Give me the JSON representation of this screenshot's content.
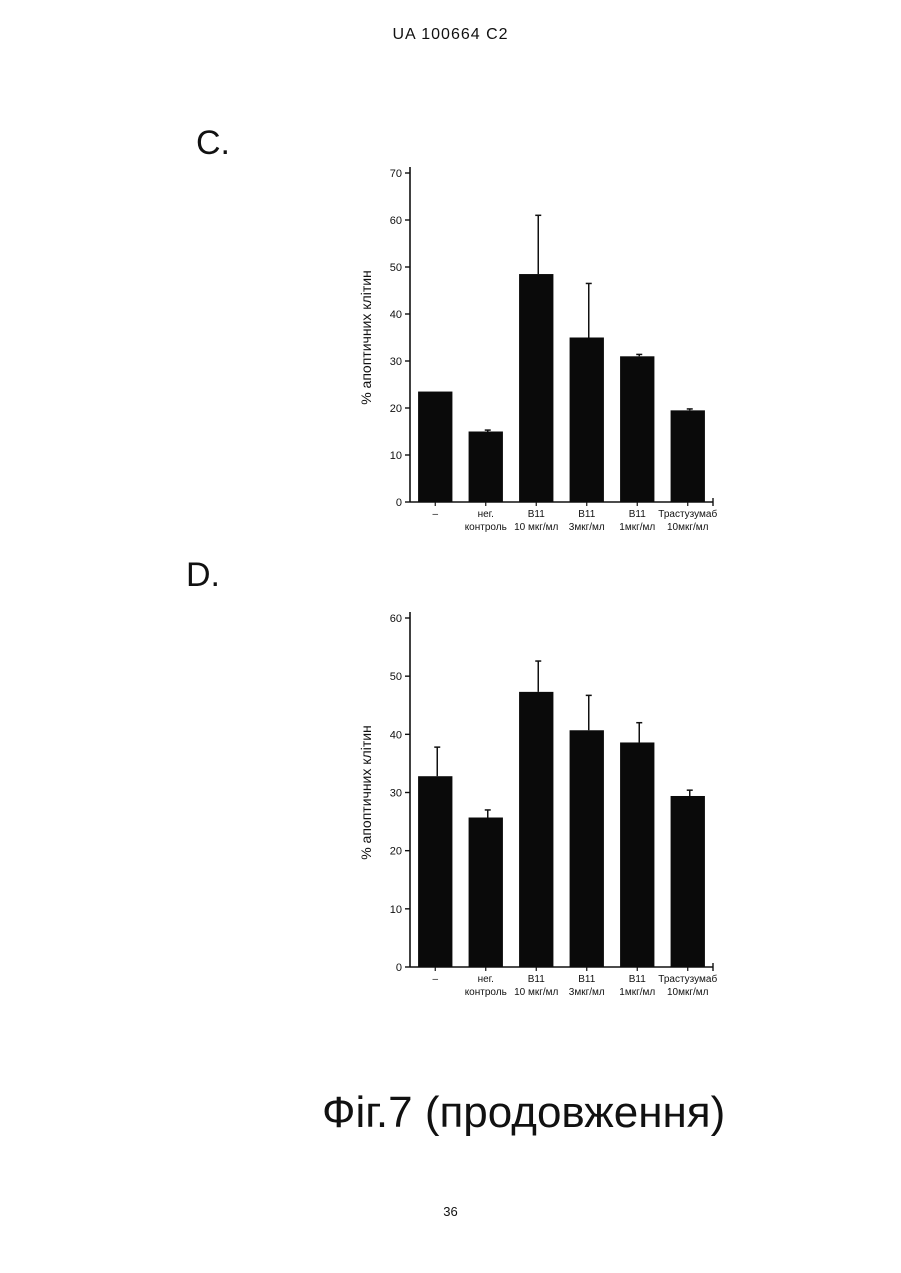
{
  "header": {
    "text": "UA   100664   C2"
  },
  "panels": [
    {
      "label": "C."
    },
    {
      "label": "D."
    }
  ],
  "chart_data": [
    {
      "type": "bar",
      "ylabel": "% апоптичних клітин",
      "xlabel": "",
      "ylim": [
        0,
        70
      ],
      "yticks": [
        0,
        10,
        20,
        30,
        40,
        50,
        60,
        70
      ],
      "categories": [
        [
          "–"
        ],
        [
          "нег.",
          "контроль"
        ],
        [
          "B11",
          "10 мкг/мл"
        ],
        [
          "B11",
          "3мкг/мл"
        ],
        [
          "B11",
          "1мкг/мл"
        ],
        [
          "Трастузумаб",
          "10мкг/мл"
        ]
      ],
      "values": [
        23.5,
        15.0,
        48.5,
        35.0,
        31.0,
        19.5
      ],
      "errors": [
        0,
        0.3,
        12.5,
        11.5,
        0.4,
        0.3
      ],
      "bar_color": "#0a0a0a"
    },
    {
      "type": "bar",
      "ylabel": "% апоптичних клітин",
      "xlabel": "",
      "ylim": [
        0,
        60
      ],
      "yticks": [
        0,
        10,
        20,
        30,
        40,
        50,
        60
      ],
      "categories": [
        [
          "–"
        ],
        [
          "нег.",
          "контроль"
        ],
        [
          "B11",
          "10 мкг/мл"
        ],
        [
          "B11",
          "3мкг/мл"
        ],
        [
          "B11",
          "1мкг/мл"
        ],
        [
          "Трастузумаб",
          "10мкг/мл"
        ]
      ],
      "values": [
        32.8,
        25.7,
        47.3,
        40.7,
        38.6,
        29.4
      ],
      "errors": [
        5.0,
        1.3,
        5.3,
        6.0,
        3.4,
        1.0
      ],
      "bar_color": "#0a0a0a"
    }
  ],
  "caption": {
    "text": "Фіг.7 (продовження)"
  },
  "footer": {
    "page_number": "36"
  }
}
